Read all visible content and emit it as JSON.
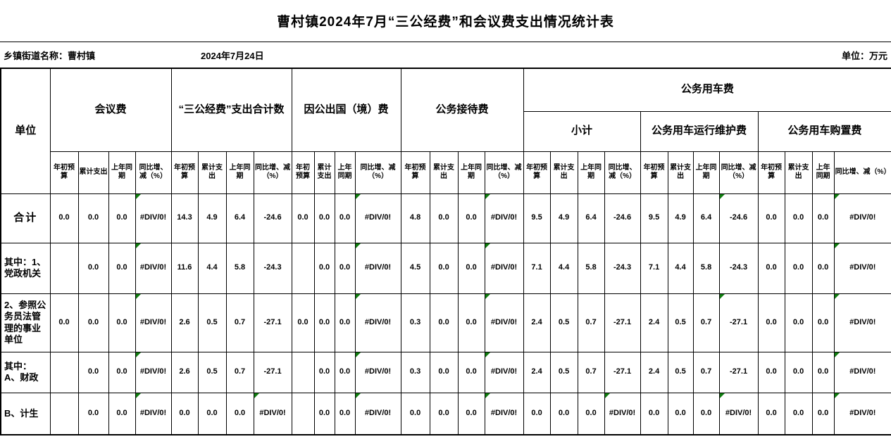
{
  "title": "曹村镇2024年7月“三公经费”和会议费支出情况统计表",
  "info": {
    "name": "乡镇街道名称：曹村镇",
    "date": "2024年7月24日",
    "unit": "单位：万元"
  },
  "colors": {
    "error_triangle": "#0f7c0f"
  },
  "table": {
    "unit_header": "单位",
    "group_headers": [
      "会议费",
      "“三公经费”支出合计数",
      "因公出国（境）费",
      "公务接待费"
    ],
    "vehicle_header": "公务用车费",
    "vehicle_subgroups": [
      "小计",
      "公务用车运行维护费",
      "公务用车购置费"
    ],
    "subcols": [
      "年初预算",
      "累计支出",
      "上年同期",
      "同比增、减（%）"
    ],
    "rows": [
      {
        "label": "合计",
        "cells": [
          "0.0",
          "0.0",
          "0.0",
          "#DIV/0!",
          "14.3",
          "4.9",
          "6.4",
          "-24.6",
          "0.0",
          "0.0",
          "0.0",
          "#DIV/0!",
          "4.8",
          "0.0",
          "0.0",
          "#DIV/0!",
          "9.5",
          "4.9",
          "6.4",
          "-24.6",
          "9.5",
          "4.9",
          "6.4",
          "-24.6",
          "0.0",
          "0.0",
          "0.0",
          "#DIV/0!"
        ],
        "tri": [
          3,
          11,
          15,
          23,
          27
        ]
      },
      {
        "label": "其中：1、党政机关",
        "cells": [
          "",
          "0.0",
          "0.0",
          "#DIV/0!",
          "11.6",
          "4.4",
          "5.8",
          "-24.3",
          "",
          "0.0",
          "0.0",
          "#DIV/0!",
          "4.5",
          "0.0",
          "0.0",
          "#DIV/0!",
          "7.1",
          "4.4",
          "5.8",
          "-24.3",
          "7.1",
          "4.4",
          "5.8",
          "-24.3",
          "0.0",
          "0.0",
          "0.0",
          "#DIV/0!"
        ],
        "tri": [
          3,
          11,
          15,
          27
        ]
      },
      {
        "label": "2、参照公务员法管理的事业单位",
        "cells": [
          "0.0",
          "0.0",
          "0.0",
          "#DIV/0!",
          "2.6",
          "0.5",
          "0.7",
          "-27.1",
          "0.0",
          "0.0",
          "0.0",
          "#DIV/0!",
          "0.3",
          "0.0",
          "0.0",
          "#DIV/0!",
          "2.4",
          "0.5",
          "0.7",
          "-27.1",
          "2.4",
          "0.5",
          "0.7",
          "-27.1",
          "0.0",
          "0.0",
          "0.0",
          "#DIV/0!"
        ],
        "tri": [
          3,
          11,
          15,
          23,
          27
        ]
      },
      {
        "label": "其中：A、财政",
        "cells": [
          "",
          "0.0",
          "0.0",
          "#DIV/0!",
          "2.6",
          "0.5",
          "0.7",
          "-27.1",
          "",
          "0.0",
          "0.0",
          "#DIV/0!",
          "0.3",
          "0.0",
          "0.0",
          "#DIV/0!",
          "2.4",
          "0.5",
          "0.7",
          "-27.1",
          "2.4",
          "0.5",
          "0.7",
          "-27.1",
          "0.0",
          "0.0",
          "0.0",
          "#DIV/0!"
        ],
        "tri": [
          3,
          11,
          15,
          27
        ]
      },
      {
        "label": "B、计生",
        "cells": [
          "",
          "0.0",
          "0.0",
          "#DIV/0!",
          "0.0",
          "0.0",
          "0.0",
          "#DIV/0!",
          "",
          "0.0",
          "0.0",
          "#DIV/0!",
          "0.0",
          "0.0",
          "0.0",
          "#DIV/0!",
          "0.0",
          "0.0",
          "0.0",
          "#DIV/0!",
          "0.0",
          "0.0",
          "0.0",
          "#DIV/0!",
          "0.0",
          "0.0",
          "0.0",
          "#DIV/0!"
        ],
        "tri": [
          3,
          7,
          11,
          15,
          19,
          23,
          27
        ]
      }
    ]
  }
}
